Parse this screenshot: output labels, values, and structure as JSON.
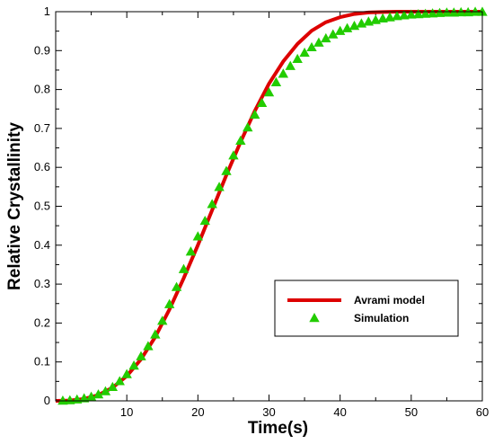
{
  "chart_data": {
    "type": "line",
    "xlabel": "Time(s)",
    "ylabel": "Relative Crystallinity",
    "xlim": [
      0,
      60
    ],
    "ylim": [
      0,
      1
    ],
    "x_ticks": [
      10,
      20,
      30,
      40,
      50,
      60
    ],
    "x_tick_labels": [
      "10",
      "20",
      "30",
      "40",
      "50",
      "60"
    ],
    "y_ticks": [
      0,
      0.1,
      0.2,
      0.3,
      0.4,
      0.5,
      0.6,
      0.7,
      0.8,
      0.9,
      1
    ],
    "y_tick_labels": [
      "0",
      "0.1",
      "0.2",
      "0.3",
      "0.4",
      "0.5",
      "0.6",
      "0.7",
      "0.8",
      "0.9",
      "1"
    ],
    "grid": false,
    "legend_position": "bottom-right",
    "series": [
      {
        "name": "Avrami model",
        "style": "line",
        "color": "#dd0000",
        "x": [
          0,
          2,
          4,
          6,
          8,
          10,
          12,
          14,
          16,
          18,
          20,
          22,
          24,
          26,
          28,
          30,
          32,
          34,
          36,
          38,
          40,
          42,
          44,
          46,
          48,
          50,
          52,
          54,
          56,
          58,
          60
        ],
        "y": [
          0,
          0.001,
          0.005,
          0.015,
          0.034,
          0.064,
          0.107,
          0.164,
          0.235,
          0.315,
          0.4,
          0.49,
          0.58,
          0.665,
          0.745,
          0.815,
          0.872,
          0.917,
          0.951,
          0.973,
          0.986,
          0.994,
          0.998,
          0.999,
          1,
          1,
          1,
          1,
          1,
          1,
          1
        ]
      },
      {
        "name": "Simulation",
        "style": "marker-triangle",
        "color": "#22cc00",
        "x": [
          1,
          2,
          3,
          4,
          5,
          6,
          7,
          8,
          9,
          10,
          11,
          12,
          13,
          14,
          15,
          16,
          17,
          18,
          19,
          20,
          21,
          22,
          23,
          24,
          25,
          26,
          27,
          28,
          29,
          30,
          31,
          32,
          33,
          34,
          35,
          36,
          37,
          38,
          39,
          40,
          41,
          42,
          43,
          44,
          45,
          46,
          47,
          48,
          49,
          50,
          51,
          52,
          53,
          54,
          55,
          56,
          57,
          58,
          59,
          60
        ],
        "y": [
          0,
          0.001,
          0.003,
          0.006,
          0.01,
          0.016,
          0.024,
          0.035,
          0.05,
          0.068,
          0.09,
          0.114,
          0.14,
          0.17,
          0.205,
          0.248,
          0.292,
          0.338,
          0.383,
          0.422,
          0.462,
          0.505,
          0.549,
          0.59,
          0.63,
          0.668,
          0.702,
          0.735,
          0.765,
          0.792,
          0.818,
          0.84,
          0.86,
          0.878,
          0.894,
          0.908,
          0.92,
          0.931,
          0.941,
          0.95,
          0.957,
          0.963,
          0.969,
          0.974,
          0.978,
          0.982,
          0.985,
          0.988,
          0.99,
          0.992,
          0.993,
          0.994,
          0.995,
          0.996,
          0.997,
          0.997,
          0.998,
          0.998,
          0.999,
          0.999
        ]
      }
    ]
  }
}
